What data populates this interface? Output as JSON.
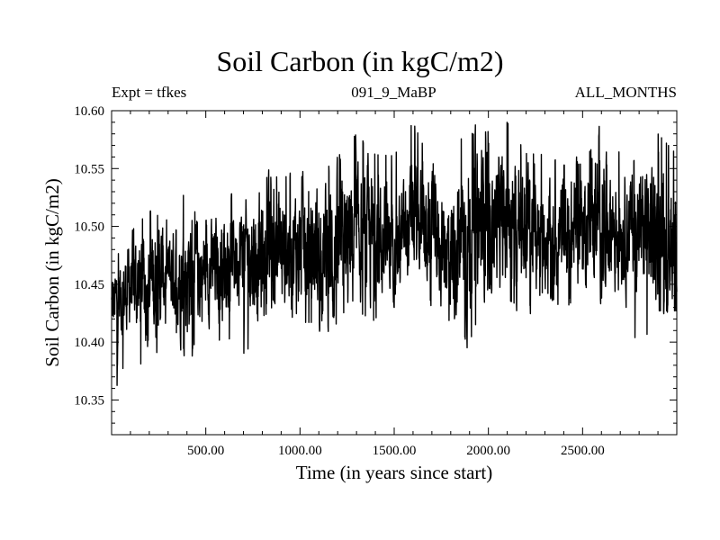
{
  "chart_data": {
    "type": "line",
    "title": "Soil Carbon (in kgC/m2)",
    "subtitle_left": "Expt = tfkes",
    "subtitle_center": "091_9_MaBP",
    "subtitle_right": "ALL_MONTHS",
    "xlabel": "Time (in years since start)",
    "ylabel": "Soil Carbon (in kgC/m2)",
    "xlim": [
      0,
      3000
    ],
    "ylim": [
      10.32,
      10.6
    ],
    "xticks": [
      {
        "value": 500,
        "label": "500.00"
      },
      {
        "value": 1000,
        "label": "1000.00"
      },
      {
        "value": 1500,
        "label": "1500.00"
      },
      {
        "value": 2000,
        "label": "2000.00"
      },
      {
        "value": 2500,
        "label": "2500.00"
      }
    ],
    "yticks": [
      {
        "value": 10.35,
        "label": "10.35"
      },
      {
        "value": 10.4,
        "label": "10.40"
      },
      {
        "value": 10.45,
        "label": "10.45"
      },
      {
        "value": 10.5,
        "label": "10.50"
      },
      {
        "value": 10.55,
        "label": "10.55"
      },
      {
        "value": 10.6,
        "label": "10.60"
      }
    ],
    "grid": false,
    "line_color": "#000000",
    "series": [
      {
        "x": [
          0,
          100,
          200,
          300,
          400,
          500,
          600,
          700,
          800,
          900,
          1000,
          1100,
          1200,
          1300,
          1400,
          1500,
          1600,
          1700,
          1800,
          1900,
          2000,
          2100,
          2200,
          2300,
          2400,
          2500,
          2600,
          2700,
          2800,
          2900,
          3000
        ],
        "y": [
          10.43,
          10.45,
          10.45,
          10.46,
          10.46,
          10.46,
          10.47,
          10.48,
          10.47,
          10.48,
          10.48,
          10.48,
          10.47,
          10.49,
          10.49,
          10.48,
          10.5,
          10.49,
          10.48,
          10.49,
          10.51,
          10.5,
          10.5,
          10.49,
          10.49,
          10.5,
          10.51,
          10.5,
          10.5,
          10.49,
          10.49
        ],
        "min": [
          10.34,
          10.39,
          10.36,
          10.42,
          10.38,
          10.38,
          10.4,
          10.38,
          10.4,
          10.4,
          10.41,
          10.41,
          10.38,
          10.42,
          10.41,
          10.43,
          10.43,
          10.43,
          10.41,
          10.39,
          10.44,
          10.43,
          10.42,
          10.44,
          10.42,
          10.44,
          10.43,
          10.44,
          10.38,
          10.42,
          10.42
        ],
        "max": [
          10.47,
          10.5,
          10.52,
          10.51,
          10.54,
          10.51,
          10.53,
          10.53,
          10.55,
          10.55,
          10.55,
          10.55,
          10.57,
          10.59,
          10.57,
          10.57,
          10.6,
          10.56,
          10.58,
          10.59,
          10.59,
          10.6,
          10.57,
          10.57,
          10.56,
          10.56,
          10.59,
          10.57,
          10.56,
          10.59,
          10.57
        ]
      }
    ]
  }
}
